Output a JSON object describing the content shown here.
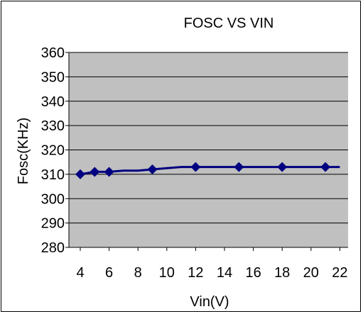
{
  "chart_data": {
    "type": "line",
    "title": "FOSC VS VIN",
    "xlabel": "Vin(V)",
    "ylabel": "Fosc(KHz)",
    "x_tick_labels": [
      "4",
      "6",
      "8",
      "10",
      "12",
      "14",
      "16",
      "18",
      "20",
      "22"
    ],
    "y_tick_labels": [
      "360",
      "350",
      "340",
      "330",
      "320",
      "310",
      "300",
      "290",
      "280"
    ],
    "ylim": [
      280,
      360
    ],
    "grid": "horizontal",
    "plot_background": "#c0c0c0",
    "series": [
      {
        "color": "#000080",
        "marker": "diamond",
        "points": [
          {
            "x": 4,
            "y": 310
          },
          {
            "x": 5,
            "y": 311
          },
          {
            "x": 6,
            "y": 311
          },
          {
            "x": 9,
            "y": 312
          },
          {
            "x": 12,
            "y": 313
          },
          {
            "x": 15,
            "y": 313
          },
          {
            "x": 18,
            "y": 313
          },
          {
            "x": 21,
            "y": 313
          }
        ],
        "line_x": [
          4,
          5,
          6,
          7,
          8,
          9,
          10,
          11,
          12,
          13,
          14,
          15,
          16,
          17,
          18,
          19,
          20,
          21,
          22
        ],
        "line_y": [
          310,
          311,
          311,
          311.5,
          311.5,
          312,
          312.5,
          313,
          313,
          313,
          313,
          313,
          313,
          313,
          313,
          313,
          313,
          313,
          313
        ]
      }
    ]
  }
}
